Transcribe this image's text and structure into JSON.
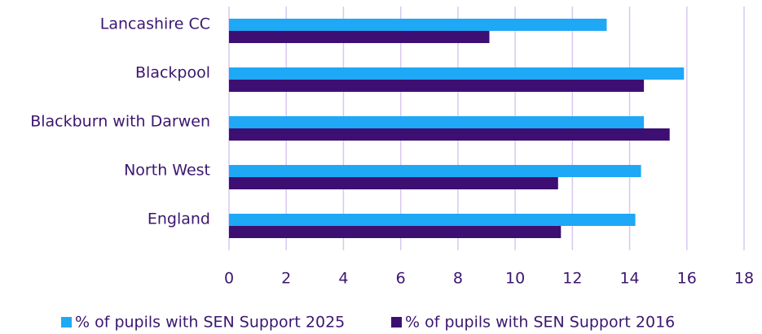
{
  "chart_data": {
    "type": "hbar",
    "categories": [
      "Lancashire CC",
      "Blackpool",
      "Blackburn with Darwen",
      "North West",
      "England"
    ],
    "series": [
      {
        "name": "% of pupils with SEN Support 2025",
        "color": "#1ea8f6",
        "values": [
          13.2,
          15.9,
          14.5,
          14.4,
          14.2
        ]
      },
      {
        "name": "% of pupils with SEN Support 2016",
        "color": "#3d0f72",
        "values": [
          9.1,
          14.5,
          15.4,
          11.5,
          11.6
        ]
      }
    ],
    "xlim": [
      0,
      18
    ],
    "xticks": [
      0,
      2,
      4,
      6,
      8,
      10,
      12,
      14,
      16,
      18
    ],
    "grid": true,
    "legend": "bottom"
  }
}
